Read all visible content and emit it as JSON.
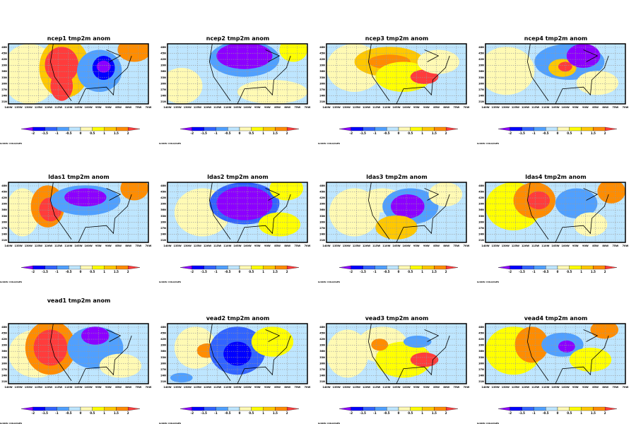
{
  "chart_data": {
    "type": "heatmap",
    "variable": "tmp2m anom",
    "panels": [
      {
        "title": "ncep1  tmp2m  anom"
      },
      {
        "title": "ncep2  tmp2m  anom"
      },
      {
        "title": "ncep3  tmp2m  anom"
      },
      {
        "title": "ncep4  tmp2m  anom"
      },
      {
        "title": "ldas1  tmp2m  anom"
      },
      {
        "title": "ldas2  tmp2m  anom"
      },
      {
        "title": "ldas3  tmp2m  anom"
      },
      {
        "title": "ldas4  tmp2m  anom"
      },
      {
        "title": "vead1  tmp2m  anom"
      },
      {
        "title": "vead2  tmp2m  anom"
      },
      {
        "title": "vead3  tmp2m  anom"
      },
      {
        "title": "vead4  tmp2m  anom"
      }
    ],
    "lon_ticks": [
      "140W",
      "135W",
      "130W",
      "125W",
      "120W",
      "115W",
      "110W",
      "105W",
      "100W",
      "95W",
      "90W",
      "85W",
      "80W",
      "75W",
      "70W"
    ],
    "lat_ticks": [
      "48N",
      "45N",
      "42N",
      "39N",
      "36N",
      "33N",
      "30N",
      "27N",
      "24N",
      "21N"
    ],
    "colorbar": {
      "levels": [
        "-2",
        "-1.5",
        "-1",
        "-0.5",
        "0",
        "0.5",
        "1",
        "1.5",
        "2"
      ],
      "colors": [
        "#8c00ff",
        "#0000ff",
        "#3264ff",
        "#50a0ff",
        "#bee6ff",
        "#fffab4",
        "#ffff00",
        "#ffc800",
        "#ff8c00",
        "#ff3c3c"
      ]
    },
    "grid": true,
    "footer": "GrADS: COLA/IGES"
  }
}
